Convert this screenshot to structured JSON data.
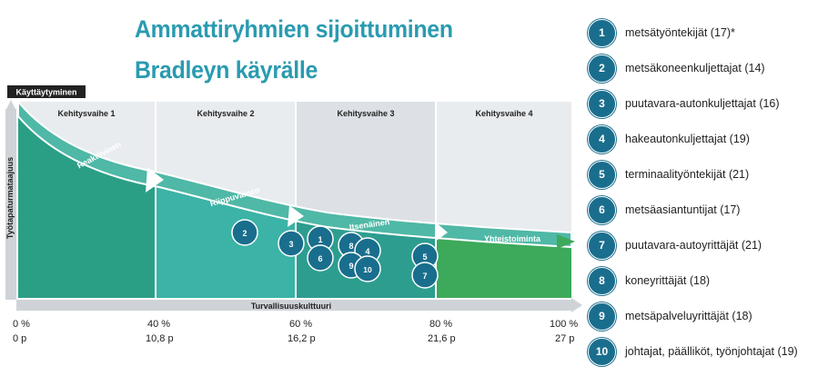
{
  "title": {
    "line1": "Ammattiryhmien sijoittuminen",
    "line2": "Bradleyn käyrälle"
  },
  "diagram": {
    "top_badge": "Käyttäytyminen",
    "y_axis_label": "Työtapaturmataajuus",
    "x_axis_label": "Turvallisuuskulttuuri",
    "phases": [
      "Kehitysvaihe 1",
      "Kehitysvaihe 2",
      "Kehitysvaihe 3",
      "Kehitysvaihe 4"
    ],
    "curve_labels": [
      "Reaktiivinen",
      "Riippuvainen",
      "Itsenäinen",
      "Yhteistoiminta"
    ],
    "bubbles": [
      "2",
      "3",
      "1",
      "6",
      "8",
      "4",
      "9",
      "10",
      "5",
      "7"
    ],
    "x_ticks": [
      {
        "pct": "0 %",
        "points": "0 p"
      },
      {
        "pct": "40 %",
        "points": "10,8 p"
      },
      {
        "pct": "60 %",
        "points": "16,2 p"
      },
      {
        "pct": "80 %",
        "points": "21,6 p"
      },
      {
        "pct": "100 %",
        "points": "27 p"
      }
    ],
    "colors": {
      "phase1": "#2b9f86",
      "phase2": "#3bb3a6",
      "phase3": "#2d9d8f",
      "phase4": "#3da95b",
      "bubble": "#1a6e8d",
      "title": "#2a9bb0"
    }
  },
  "legend": [
    {
      "number": "1",
      "label": "metsätyöntekijät  (17)*"
    },
    {
      "number": "2",
      "label": "metsäkoneenkuljettajat  (14)"
    },
    {
      "number": "3",
      "label": "puutavara-autonkuljettajat  (16)"
    },
    {
      "number": "4",
      "label": "hakeautonkuljettajat  (19)"
    },
    {
      "number": "5",
      "label": "terminaalityöntekijät  (21)"
    },
    {
      "number": "6",
      "label": "metsäasiantuntijat  (17)"
    },
    {
      "number": "7",
      "label": "puutavara-autoyrittäjät  (21)"
    },
    {
      "number": "8",
      "label": "koneyrittäjät  (18)"
    },
    {
      "number": "9",
      "label": "metsäpalveluyrittäjät  (18)"
    },
    {
      "number": "10",
      "label": "johtajat,  päälliköt,  työnjohtajat  (19)"
    }
  ]
}
